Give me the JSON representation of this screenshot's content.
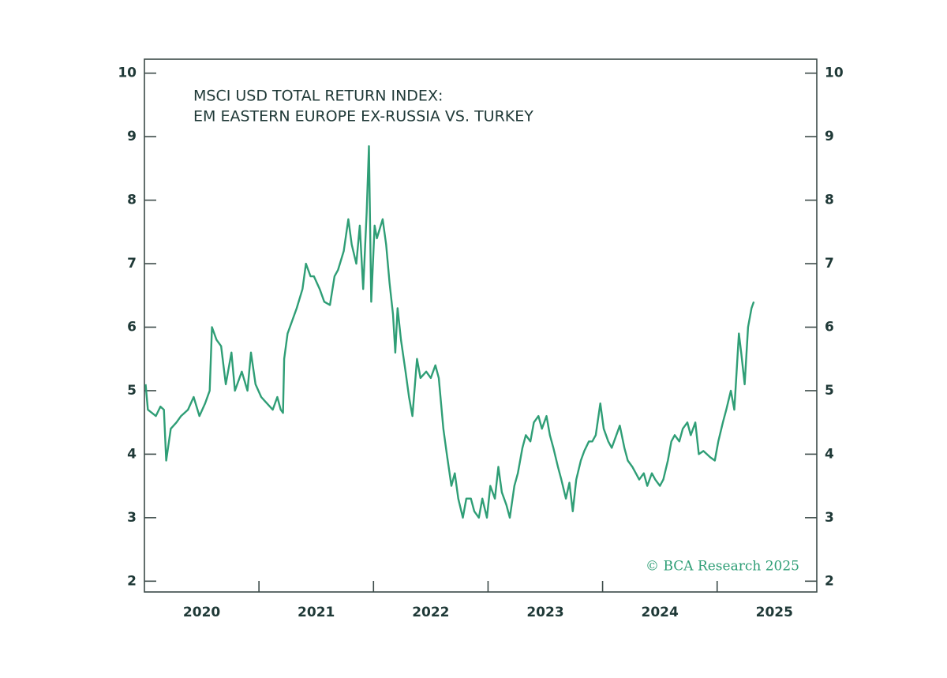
{
  "chart_data": {
    "type": "line",
    "title": "MSCI USD TOTAL RETURN INDEX:",
    "subtitle": "EM EASTERN EUROPE EX-RUSSIA VS. TURKEY",
    "credit": "© BCA Research 2025",
    "xlim": [
      2020,
      2025.87
    ],
    "xticks": [
      2021,
      2022,
      2023,
      2024,
      2025
    ],
    "xtick_labels": [
      {
        "value": 2020.5,
        "label": "2020"
      },
      {
        "value": 2021.5,
        "label": "2021"
      },
      {
        "value": 2022.5,
        "label": "2022"
      },
      {
        "value": 2023.5,
        "label": "2023"
      },
      {
        "value": 2024.5,
        "label": "2024"
      },
      {
        "value": 2025.5,
        "label": "2025"
      }
    ],
    "ylim": [
      1.83,
      10.22
    ],
    "yticks": [
      2,
      3,
      4,
      5,
      6,
      7,
      8,
      9,
      10
    ],
    "y2lim": [
      1.83,
      10.22
    ],
    "y2ticks": [
      2,
      3,
      4,
      5,
      6,
      7,
      8,
      9,
      10
    ],
    "x": [
      2020.01,
      2020.03,
      2020.1,
      2020.14,
      2020.17,
      2020.19,
      2020.23,
      2020.28,
      2020.32,
      2020.38,
      2020.43,
      2020.48,
      2020.53,
      2020.57,
      2020.59,
      2020.63,
      2020.67,
      2020.71,
      2020.76,
      2020.79,
      2020.85,
      2020.9,
      2020.93,
      2020.97,
      2021.02,
      2021.07,
      2021.12,
      2021.16,
      2021.19,
      2021.21,
      2021.22,
      2021.25,
      2021.29,
      2021.33,
      2021.38,
      2021.41,
      2021.45,
      2021.48,
      2021.53,
      2021.57,
      2021.62,
      2021.66,
      2021.69,
      2021.74,
      2021.78,
      2021.81,
      2021.85,
      2021.88,
      2021.91,
      2021.94,
      2021.96,
      2021.98,
      2022.01,
      2022.03,
      2022.08,
      2022.11,
      2022.14,
      2022.17,
      2022.19,
      2022.21,
      2022.24,
      2022.28,
      2022.31,
      2022.34,
      2022.38,
      2022.41,
      2022.46,
      2022.5,
      2022.54,
      2022.57,
      2022.61,
      2022.64,
      2022.68,
      2022.71,
      2022.74,
      2022.78,
      2022.81,
      2022.85,
      2022.88,
      2022.92,
      2022.95,
      2022.99,
      2023.02,
      2023.06,
      2023.09,
      2023.12,
      2023.16,
      2023.19,
      2023.23,
      2023.26,
      2023.3,
      2023.33,
      2023.37,
      2023.4,
      2023.44,
      2023.47,
      2023.51,
      2023.54,
      2023.57,
      2023.61,
      2023.64,
      2023.68,
      2023.71,
      2023.74,
      2023.77,
      2023.81,
      2023.84,
      2023.88,
      2023.91,
      2023.94,
      2023.98,
      2024.01,
      2024.05,
      2024.08,
      2024.12,
      2024.15,
      2024.19,
      2024.22,
      2024.26,
      2024.29,
      2024.32,
      2024.36,
      2024.39,
      2024.43,
      2024.46,
      2024.5,
      2024.53,
      2024.57,
      2024.6,
      2024.63,
      2024.67,
      2024.7,
      2024.74,
      2024.77,
      2024.81,
      2024.84,
      2024.88,
      2024.91,
      2024.94,
      2024.98,
      2025.01,
      2025.05,
      2025.08,
      2025.12,
      2025.15,
      2025.19,
      2025.21,
      2025.24,
      2025.27,
      2025.3,
      2025.32
    ],
    "series": [
      {
        "name": "EM Eastern Europe ex-Russia vs. Turkey",
        "color": "#2f9e76",
        "values": [
          5.1,
          4.7,
          4.6,
          4.75,
          4.7,
          3.9,
          4.4,
          4.5,
          4.6,
          4.7,
          4.9,
          4.6,
          4.8,
          5.0,
          6.0,
          5.8,
          5.7,
          5.1,
          5.6,
          5.0,
          5.3,
          5.0,
          5.6,
          5.1,
          4.9,
          4.8,
          4.7,
          4.9,
          4.7,
          4.65,
          5.5,
          5.9,
          6.1,
          6.3,
          6.6,
          7.0,
          6.8,
          6.8,
          6.6,
          6.4,
          6.35,
          6.8,
          6.9,
          7.2,
          7.7,
          7.3,
          7.0,
          7.6,
          6.6,
          7.8,
          8.85,
          6.4,
          7.6,
          7.4,
          7.7,
          7.3,
          6.7,
          6.2,
          5.6,
          6.3,
          5.8,
          5.3,
          4.9,
          4.6,
          5.5,
          5.2,
          5.3,
          5.2,
          5.4,
          5.2,
          4.4,
          4.0,
          3.5,
          3.7,
          3.3,
          3.0,
          3.3,
          3.3,
          3.1,
          3.0,
          3.3,
          3.0,
          3.5,
          3.3,
          3.8,
          3.4,
          3.2,
          3.0,
          3.5,
          3.7,
          4.1,
          4.3,
          4.2,
          4.5,
          4.6,
          4.4,
          4.6,
          4.3,
          4.1,
          3.8,
          3.6,
          3.3,
          3.55,
          3.1,
          3.6,
          3.9,
          4.05,
          4.2,
          4.2,
          4.3,
          4.8,
          4.4,
          4.2,
          4.1,
          4.3,
          4.45,
          4.1,
          3.9,
          3.8,
          3.7,
          3.6,
          3.7,
          3.5,
          3.7,
          3.6,
          3.5,
          3.6,
          3.9,
          4.2,
          4.3,
          4.2,
          4.4,
          4.5,
          4.3,
          4.5,
          4.0,
          4.05,
          4.0,
          3.95,
          3.9,
          4.2,
          4.5,
          4.7,
          5.0,
          4.7,
          5.9,
          5.6,
          5.1,
          6.0,
          6.3,
          6.4
        ]
      }
    ]
  }
}
